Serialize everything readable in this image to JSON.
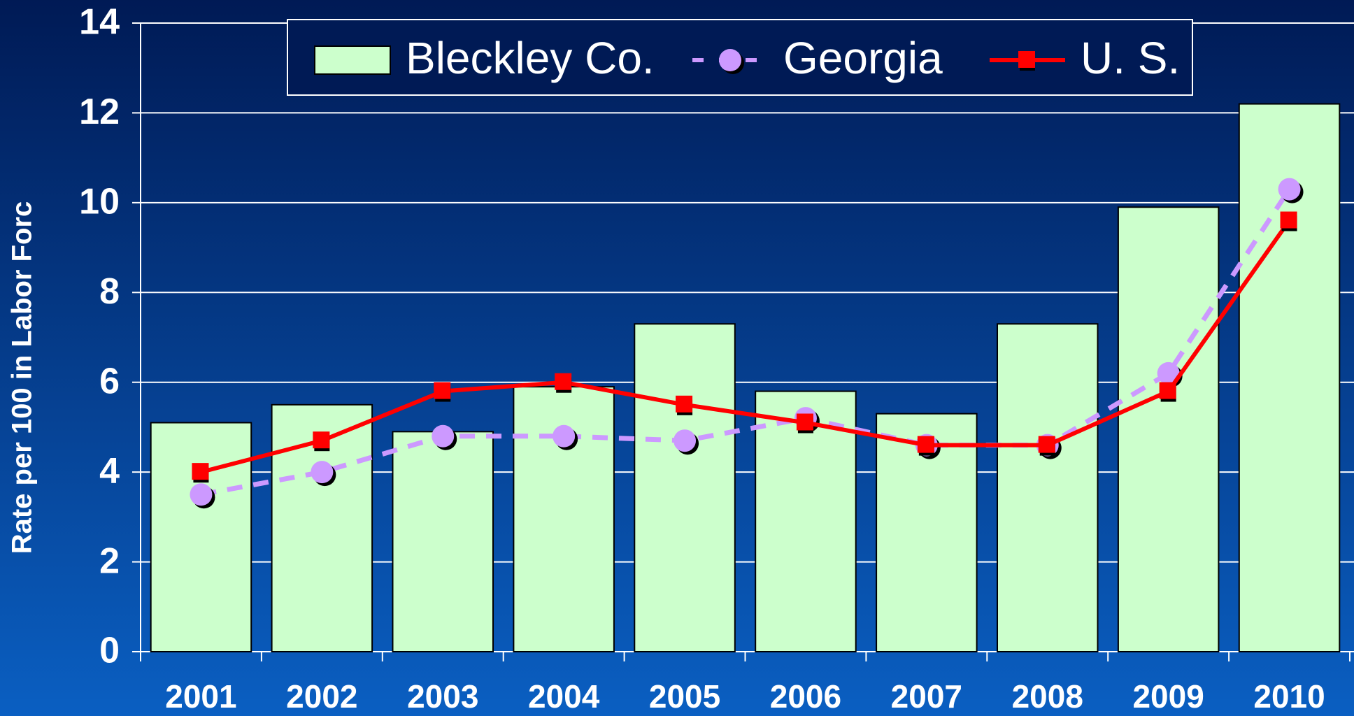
{
  "chart_data": {
    "type": "bar_line",
    "y_axis_label": "Rate per 100 in Labor Forc",
    "categories": [
      "2001",
      "2002",
      "2003",
      "2004",
      "2005",
      "2006",
      "2007",
      "2008",
      "2009",
      "2010"
    ],
    "series": [
      {
        "name": "Bleckley Co.",
        "type": "bar",
        "color": "#ccffcc",
        "values": [
          5.1,
          5.5,
          4.9,
          5.9,
          7.3,
          5.8,
          5.3,
          7.3,
          9.9,
          12.2
        ]
      },
      {
        "name": "Georgia",
        "type": "line",
        "color": "#cc99ff",
        "dashed": true,
        "marker": "circle",
        "values": [
          3.5,
          4.0,
          4.8,
          4.8,
          4.7,
          5.2,
          4.6,
          4.6,
          6.2,
          10.3
        ]
      },
      {
        "name": "U. S.",
        "type": "line",
        "color": "#ff0000",
        "marker": "square",
        "values": [
          4.0,
          4.7,
          5.8,
          6.0,
          5.5,
          5.1,
          4.6,
          4.6,
          5.8,
          9.6
        ]
      }
    ],
    "ylim": [
      0,
      14
    ],
    "yticks": [
      0,
      2,
      4,
      6,
      8,
      10,
      12,
      14
    ],
    "grid": true,
    "legend": "top"
  }
}
